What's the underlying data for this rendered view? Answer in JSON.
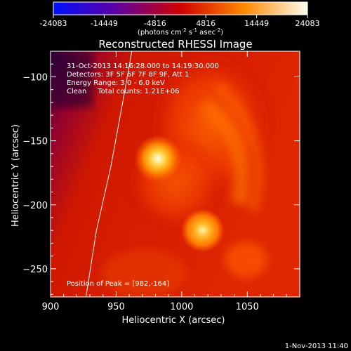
{
  "chart_data": {
    "type": "heatmap",
    "title": "Reconstructed RHESSI Image",
    "xlabel": "Heliocentric X (arcsec)",
    "ylabel": "Heliocentric Y (arcsec)",
    "xlim": [
      900,
      1090
    ],
    "ylim": [
      -272,
      -80
    ],
    "x_ticks": [
      900,
      950,
      1000,
      1050
    ],
    "y_ticks": [
      -100,
      -150,
      -200,
      -250
    ],
    "colorbar": {
      "ticks": [
        "-24083",
        "-14449",
        "-4816",
        "4816",
        "14449",
        "24083"
      ],
      "label_main": "(photons cm",
      "label_exp1": "-2",
      "label_mid1": " s",
      "label_exp2": "-1",
      "label_mid2": " asec",
      "label_exp3": "-2",
      "label_end": ")",
      "stops": [
        {
          "v": 0.0,
          "color": "#0010ff"
        },
        {
          "v": 0.25,
          "color": "#6000a0"
        },
        {
          "v": 0.5,
          "color": "#d00000"
        },
        {
          "v": 0.75,
          "color": "#ff8800"
        },
        {
          "v": 1.0,
          "color": "#fffff0"
        }
      ]
    },
    "annotations": {
      "time_range": "31-Oct-2013 14:16:28.000 to 14:19:30.000",
      "detectors": "Detectors: 3F 5F 6F 7F 8F 9F, Att 1",
      "energy": "Energy Range: 3.0 - 6.0 keV",
      "clean": "Clean     Total counts: 1.21E+06",
      "peak": "Position of Peak = [982,-164]"
    },
    "sources": [
      {
        "x": 982,
        "y": -164,
        "intensity": 1.0
      },
      {
        "x": 1016,
        "y": -220,
        "intensity": 0.9
      }
    ],
    "limb_curve": [
      [
        962,
        -80
      ],
      [
        955,
        -120
      ],
      [
        946,
        -170
      ],
      [
        935,
        -220
      ],
      [
        927,
        -272
      ]
    ],
    "timestamp": "1-Nov-2013 11:40"
  }
}
